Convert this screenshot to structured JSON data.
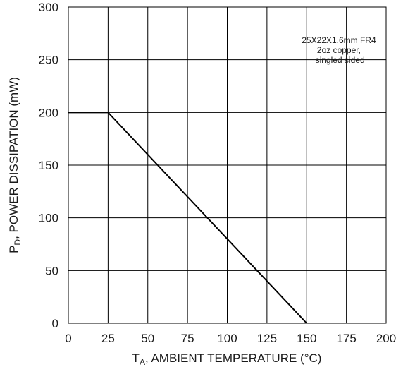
{
  "chart_data": {
    "type": "line",
    "title": "",
    "xlabel": {
      "main": "T",
      "sub": "A",
      "rest": ", AMBIENT TEMPERATURE (°C)"
    },
    "ylabel": {
      "main": "P",
      "sub": "D",
      "rest": ", POWER DISSIPATION (mW)"
    },
    "xlim": [
      0,
      200
    ],
    "ylim": [
      0,
      300
    ],
    "xticks": [
      0,
      25,
      50,
      75,
      100,
      125,
      150,
      175,
      200
    ],
    "yticks": [
      0,
      50,
      100,
      150,
      200,
      250,
      300
    ],
    "grid": true,
    "series": [
      {
        "x": [
          0,
          25,
          150
        ],
        "y": [
          200,
          200,
          0
        ],
        "color": "#000000"
      }
    ],
    "annotation": {
      "lines": [
        "25X22X1.6mm FR4",
        "2oz copper,",
        "singled sided"
      ],
      "x": 171,
      "y": 266
    }
  }
}
